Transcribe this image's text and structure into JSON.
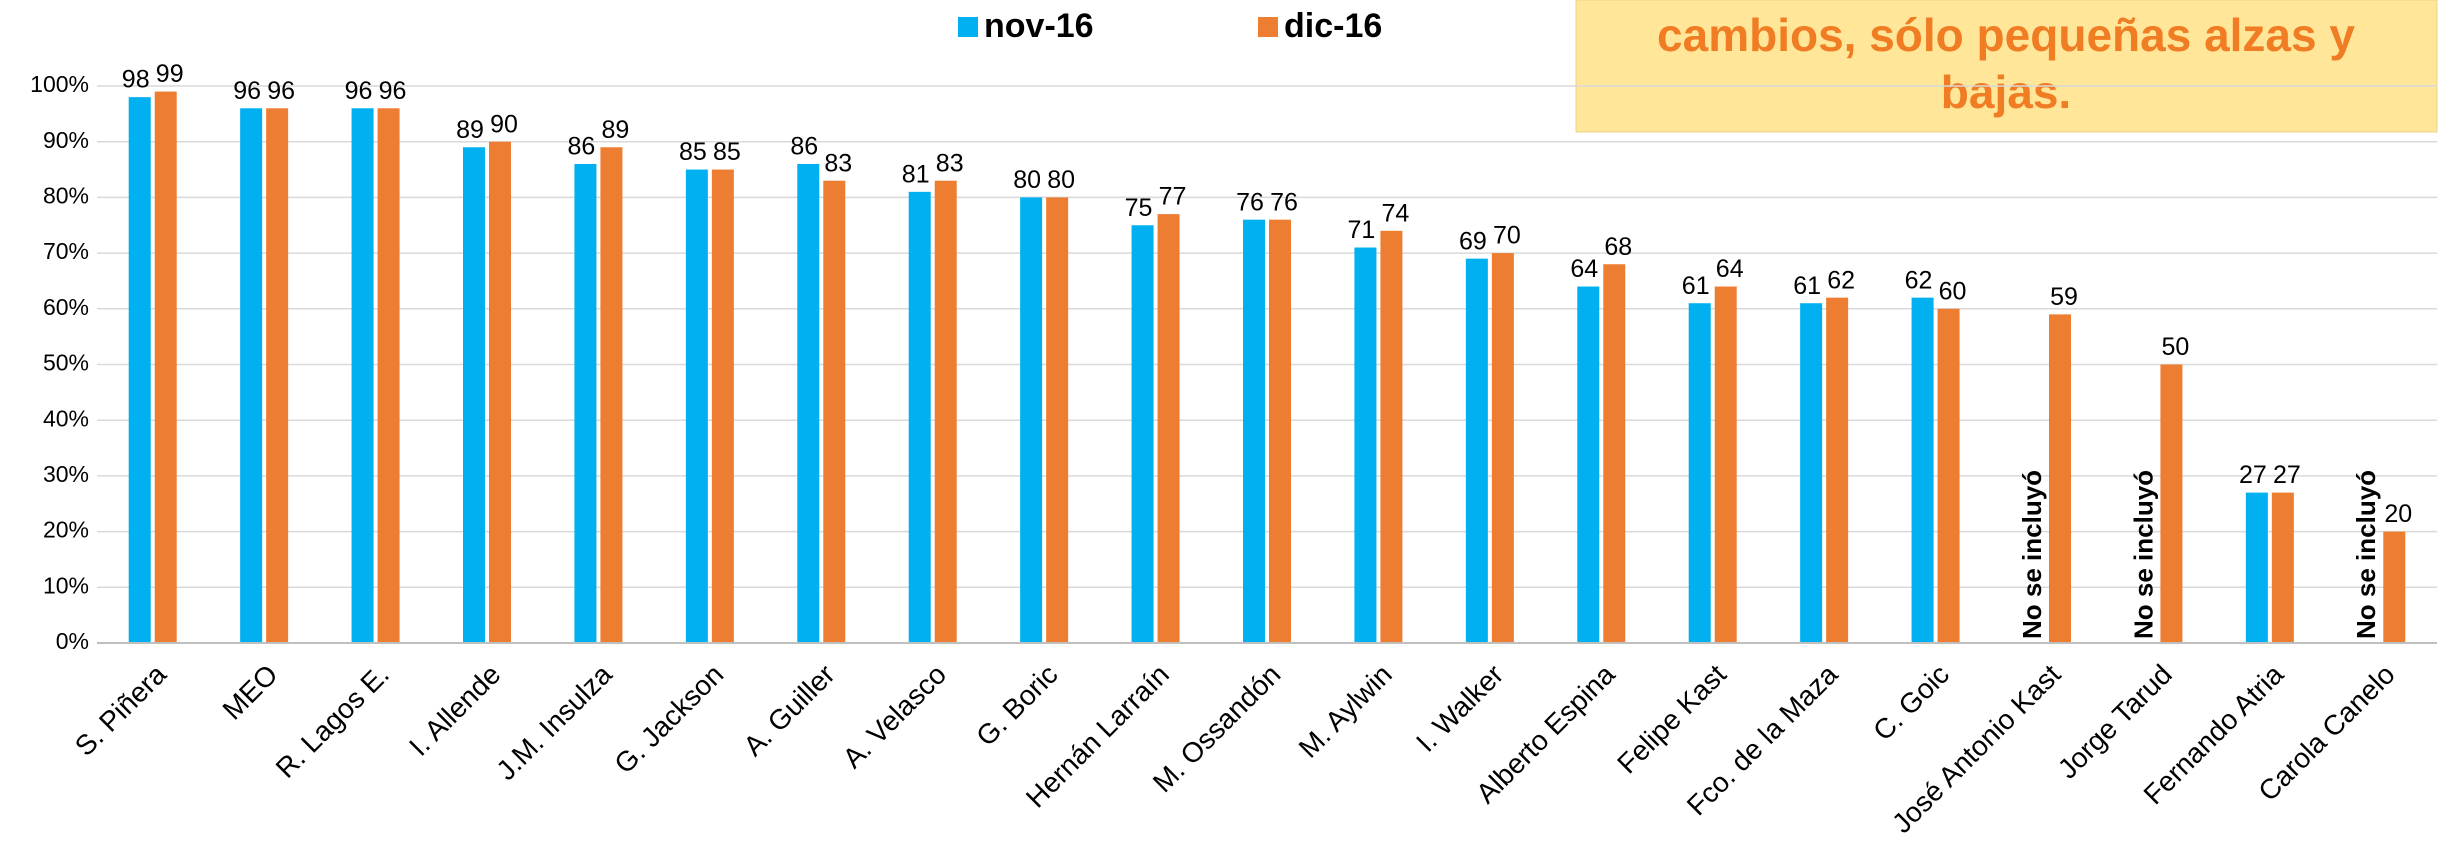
{
  "chart_data": {
    "type": "bar",
    "annotation": [
      "cambios, sólo pequeñas alzas y",
      "bajas."
    ],
    "missing_label": "No se incluyó",
    "categories": [
      "S. Piñera",
      "MEO",
      "R. Lagos E.",
      "I. Allende",
      "J.M. Insulza",
      "G. Jackson",
      "A. Guiller",
      "A. Velasco",
      "G. Boric",
      "Hernán Larraín",
      "M. Ossandón",
      "M. Aylwin",
      "I. Walker",
      "Alberto Espina",
      "Felipe Kast",
      "Fco. de la Maza",
      "C. Goic",
      "José Antonio Kast",
      "Jorge Tarud",
      "Fernando Atria",
      "Carola Canelo"
    ],
    "series": [
      {
        "name": "nov-16",
        "color": "#00B0F0",
        "values": [
          98,
          96,
          96,
          89,
          86,
          85,
          86,
          81,
          80,
          75,
          76,
          71,
          69,
          64,
          61,
          61,
          62,
          null,
          null,
          27,
          null
        ]
      },
      {
        "name": "dic-16",
        "color": "#ED7D31",
        "values": [
          99,
          96,
          96,
          90,
          89,
          85,
          83,
          83,
          80,
          77,
          76,
          74,
          70,
          68,
          64,
          62,
          60,
          59,
          50,
          27,
          20
        ]
      }
    ],
    "ylim": [
      0,
      100
    ],
    "yticks": [
      {
        "value": 0,
        "label": "0%"
      },
      {
        "value": 10,
        "label": "10%"
      },
      {
        "value": 20,
        "label": "20%"
      },
      {
        "value": 30,
        "label": "30%"
      },
      {
        "value": 40,
        "label": "40%"
      },
      {
        "value": 50,
        "label": "50%"
      },
      {
        "value": 60,
        "label": "60%"
      },
      {
        "value": 70,
        "label": "70%"
      },
      {
        "value": 80,
        "label": "80%"
      },
      {
        "value": 90,
        "label": "90%"
      },
      {
        "value": 100,
        "label": "100%"
      }
    ],
    "grid": true,
    "legend": "top"
  }
}
